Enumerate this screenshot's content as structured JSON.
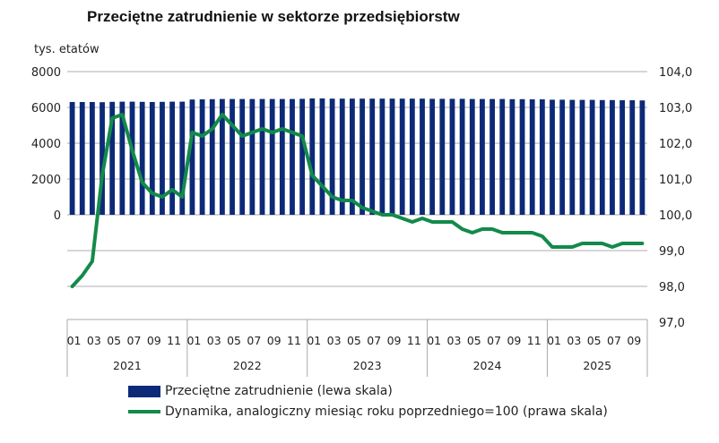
{
  "chart_data": {
    "type": "bar+line",
    "title": "Przeciętne zatrudnienie w sektorze przedsiębiorstw",
    "left_axis": {
      "label": "tys. etatów",
      "range": [
        0,
        8000
      ],
      "ticks": [
        "0",
        "2000",
        "4000",
        "6000",
        "8000"
      ]
    },
    "right_axis": {
      "range": [
        97,
        104
      ],
      "ticks": [
        "97,0",
        "98,0",
        "99,0",
        "100,0",
        "101,0",
        "102,0",
        "103,0",
        "104,0"
      ]
    },
    "grid": true,
    "legend_placement": "bottom",
    "years": [
      "2021",
      "2022",
      "2023",
      "2024",
      "2025"
    ],
    "month_ticks": [
      "01",
      "03",
      "05",
      "07",
      "09",
      "11"
    ],
    "months_per_year": [
      12,
      12,
      12,
      12,
      10
    ],
    "colors": {
      "bars": "#0d2a78",
      "line": "#138a4a"
    },
    "series": [
      {
        "name": "Przeciętne zatrudnienie (lewa skala)",
        "type": "bar",
        "axis": "left",
        "values": [
          6300,
          6300,
          6300,
          6290,
          6310,
          6320,
          6320,
          6310,
          6300,
          6310,
          6320,
          6320,
          6440,
          6450,
          6460,
          6470,
          6470,
          6470,
          6470,
          6470,
          6470,
          6470,
          6470,
          6480,
          6500,
          6500,
          6490,
          6490,
          6490,
          6490,
          6490,
          6490,
          6490,
          6490,
          6490,
          6490,
          6480,
          6480,
          6480,
          6480,
          6470,
          6470,
          6470,
          6470,
          6460,
          6460,
          6450,
          6450,
          6430,
          6430,
          6420,
          6420,
          6420,
          6410,
          6410,
          6400,
          6400,
          6390
        ]
      },
      {
        "name": "Dynamika, analogiczny miesiąc roku poprzedniego=100 (prawa skala)",
        "type": "line",
        "axis": "right",
        "values": [
          98.0,
          98.3,
          98.7,
          101.1,
          102.7,
          102.8,
          101.8,
          100.9,
          100.6,
          100.5,
          100.7,
          100.5,
          102.3,
          102.2,
          102.4,
          102.8,
          102.5,
          102.2,
          102.3,
          102.4,
          102.3,
          102.4,
          102.3,
          102.2,
          101.1,
          100.8,
          100.5,
          100.4,
          100.4,
          100.2,
          100.1,
          100.0,
          100.0,
          99.9,
          99.8,
          99.9,
          99.8,
          99.8,
          99.8,
          99.6,
          99.5,
          99.6,
          99.6,
          99.5,
          99.5,
          99.5,
          99.5,
          99.4,
          99.1,
          99.1,
          99.1,
          99.2,
          99.2,
          99.2,
          99.1,
          99.2,
          99.2,
          99.2
        ]
      }
    ]
  }
}
